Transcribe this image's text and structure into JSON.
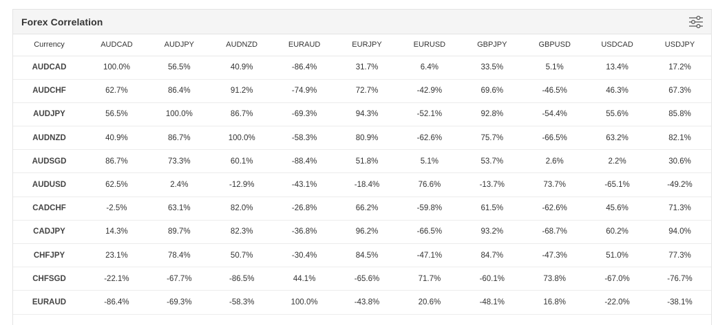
{
  "header": {
    "title": "Forex Correlation",
    "settings_icon": "sliders-icon"
  },
  "table": {
    "corner_label": "Currency",
    "columns": [
      "AUDCAD",
      "AUDJPY",
      "AUDNZD",
      "EURAUD",
      "EURJPY",
      "EURUSD",
      "GBPJPY",
      "GBPUSD",
      "USDCAD",
      "USDJPY"
    ],
    "rows": [
      {
        "pair": "AUDCAD",
        "values": [
          "100.0%",
          "56.5%",
          "40.9%",
          "-86.4%",
          "31.7%",
          "6.4%",
          "33.5%",
          "5.1%",
          "13.4%",
          "17.2%"
        ]
      },
      {
        "pair": "AUDCHF",
        "values": [
          "62.7%",
          "86.4%",
          "91.2%",
          "-74.9%",
          "72.7%",
          "-42.9%",
          "69.6%",
          "-46.5%",
          "46.3%",
          "67.3%"
        ]
      },
      {
        "pair": "AUDJPY",
        "values": [
          "56.5%",
          "100.0%",
          "86.7%",
          "-69.3%",
          "94.3%",
          "-52.1%",
          "92.8%",
          "-54.4%",
          "55.6%",
          "85.8%"
        ]
      },
      {
        "pair": "AUDNZD",
        "values": [
          "40.9%",
          "86.7%",
          "100.0%",
          "-58.3%",
          "80.9%",
          "-62.6%",
          "75.7%",
          "-66.5%",
          "63.2%",
          "82.1%"
        ]
      },
      {
        "pair": "AUDSGD",
        "values": [
          "86.7%",
          "73.3%",
          "60.1%",
          "-88.4%",
          "51.8%",
          "5.1%",
          "53.7%",
          "2.6%",
          "2.2%",
          "30.6%"
        ]
      },
      {
        "pair": "AUDUSD",
        "values": [
          "62.5%",
          "2.4%",
          "-12.9%",
          "-43.1%",
          "-18.4%",
          "76.6%",
          "-13.7%",
          "73.7%",
          "-65.1%",
          "-49.2%"
        ]
      },
      {
        "pair": "CADCHF",
        "values": [
          "-2.5%",
          "63.1%",
          "82.0%",
          "-26.8%",
          "66.2%",
          "-59.8%",
          "61.5%",
          "-62.6%",
          "45.6%",
          "71.3%"
        ]
      },
      {
        "pair": "CADJPY",
        "values": [
          "14.3%",
          "89.7%",
          "82.3%",
          "-36.8%",
          "96.2%",
          "-66.5%",
          "93.2%",
          "-68.7%",
          "60.2%",
          "94.0%"
        ]
      },
      {
        "pair": "CHFJPY",
        "values": [
          "23.1%",
          "78.4%",
          "50.7%",
          "-30.4%",
          "84.5%",
          "-47.1%",
          "84.7%",
          "-47.3%",
          "51.0%",
          "77.3%"
        ]
      },
      {
        "pair": "CHFSGD",
        "values": [
          "-22.1%",
          "-67.7%",
          "-86.5%",
          "44.1%",
          "-65.6%",
          "71.7%",
          "-60.1%",
          "73.8%",
          "-67.0%",
          "-76.7%"
        ]
      },
      {
        "pair": "EURAUD",
        "values": [
          "-86.4%",
          "-69.3%",
          "-58.3%",
          "100.0%",
          "-43.8%",
          "20.6%",
          "-48.1%",
          "16.8%",
          "-22.0%",
          "-38.1%"
        ]
      }
    ]
  }
}
